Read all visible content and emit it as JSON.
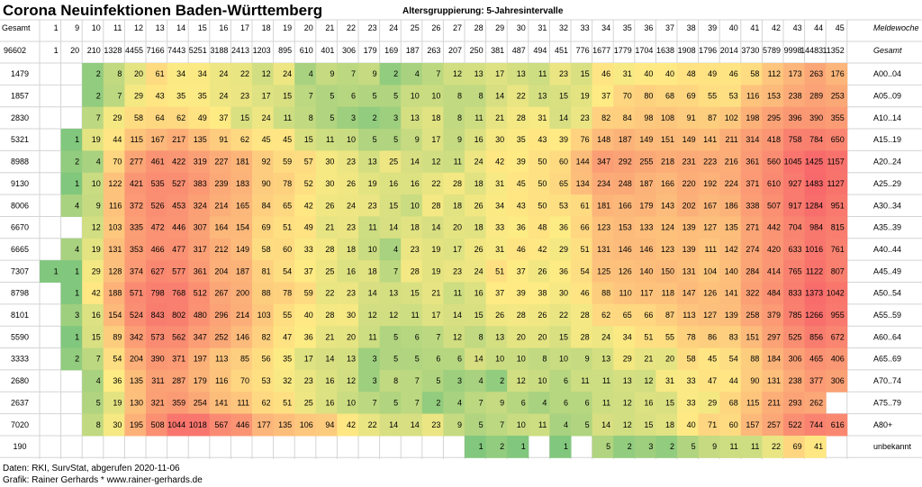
{
  "header": {
    "title": "Corona Neuinfektionen Baden-Württemberg",
    "subtitle": "Altersgruppierung: 5-Jahresintervalle"
  },
  "footer": {
    "source": "Daten: RKI, SurvStat, abgerufen 2020-11-06",
    "credit": "Grafik: Rainer Gerhards * www.rainer-gerhards.de"
  },
  "chart_data": {
    "type": "heatmap",
    "title": "Corona Neuinfektionen Baden-Württemberg",
    "subtitle": "Altersgruppierung: 5-Jahresintervalle",
    "row_header_label": "Gesamt",
    "week_axis_label": "Meldewoche",
    "total_label": "Gesamt",
    "grand_total": "96602",
    "weeks": [
      "1",
      "9",
      "10",
      "11",
      "12",
      "13",
      "14",
      "15",
      "16",
      "17",
      "18",
      "19",
      "20",
      "21",
      "22",
      "23",
      "24",
      "25",
      "26",
      "27",
      "28",
      "29",
      "30",
      "31",
      "32",
      "33",
      "34",
      "35",
      "36",
      "37",
      "38",
      "39",
      "40",
      "41",
      "42",
      "43",
      "44",
      "45"
    ],
    "week_totals": [
      "1",
      "20",
      "210",
      "1328",
      "4455",
      "7166",
      "7443",
      "5251",
      "3188",
      "2413",
      "1203",
      "895",
      "610",
      "401",
      "306",
      "179",
      "169",
      "187",
      "263",
      "207",
      "250",
      "381",
      "487",
      "494",
      "451",
      "776",
      "1677",
      "1779",
      "1704",
      "1638",
      "1908",
      "1796",
      "2014",
      "3730",
      "5789",
      "9998",
      "14483",
      "11352"
    ],
    "age_groups": [
      "A00..04",
      "A05..09",
      "A10..14",
      "A15..19",
      "A20..24",
      "A25..29",
      "A30..34",
      "A35..39",
      "A40..44",
      "A45..49",
      "A50..54",
      "A55..59",
      "A60..64",
      "A65..69",
      "A70..74",
      "A75..79",
      "A80+",
      "unbekannt"
    ],
    "row_totals": [
      "1479",
      "1857",
      "2830",
      "5321",
      "8988",
      "9130",
      "8006",
      "6670",
      "6665",
      "7307",
      "8798",
      "8101",
      "5590",
      "3333",
      "2680",
      "2637",
      "7020",
      "190"
    ],
    "values": [
      [
        "",
        "",
        "2",
        "8",
        "20",
        "61",
        "34",
        "34",
        "24",
        "22",
        "12",
        "24",
        "4",
        "9",
        "7",
        "9",
        "2",
        "4",
        "7",
        "12",
        "13",
        "17",
        "13",
        "11",
        "23",
        "15",
        "46",
        "31",
        "40",
        "40",
        "48",
        "49",
        "46",
        "58",
        "112",
        "173",
        "263",
        "176"
      ],
      [
        "",
        "",
        "2",
        "7",
        "29",
        "43",
        "35",
        "35",
        "24",
        "23",
        "17",
        "15",
        "7",
        "5",
        "6",
        "5",
        "5",
        "10",
        "10",
        "8",
        "8",
        "14",
        "22",
        "13",
        "15",
        "19",
        "37",
        "70",
        "80",
        "68",
        "69",
        "55",
        "53",
        "116",
        "153",
        "238",
        "289",
        "253"
      ],
      [
        "",
        "",
        "7",
        "29",
        "58",
        "64",
        "62",
        "49",
        "37",
        "15",
        "24",
        "11",
        "8",
        "5",
        "3",
        "2",
        "3",
        "13",
        "18",
        "8",
        "11",
        "21",
        "28",
        "31",
        "14",
        "23",
        "82",
        "84",
        "98",
        "108",
        "91",
        "87",
        "102",
        "198",
        "295",
        "396",
        "390",
        "355"
      ],
      [
        "",
        "1",
        "19",
        "44",
        "115",
        "167",
        "217",
        "135",
        "91",
        "62",
        "45",
        "45",
        "15",
        "11",
        "10",
        "5",
        "5",
        "9",
        "17",
        "9",
        "16",
        "30",
        "35",
        "43",
        "39",
        "76",
        "148",
        "187",
        "149",
        "151",
        "149",
        "141",
        "211",
        "314",
        "418",
        "758",
        "784",
        "650"
      ],
      [
        "",
        "2",
        "4",
        "70",
        "277",
        "461",
        "422",
        "319",
        "227",
        "181",
        "92",
        "59",
        "57",
        "30",
        "23",
        "13",
        "25",
        "14",
        "12",
        "11",
        "24",
        "42",
        "39",
        "50",
        "60",
        "144",
        "347",
        "292",
        "255",
        "218",
        "231",
        "223",
        "216",
        "361",
        "560",
        "1045",
        "1425",
        "1157"
      ],
      [
        "",
        "1",
        "10",
        "122",
        "421",
        "535",
        "527",
        "383",
        "239",
        "183",
        "90",
        "78",
        "52",
        "30",
        "26",
        "19",
        "16",
        "16",
        "22",
        "28",
        "18",
        "31",
        "45",
        "50",
        "65",
        "134",
        "234",
        "248",
        "187",
        "166",
        "220",
        "192",
        "224",
        "371",
        "610",
        "927",
        "1483",
        "1127"
      ],
      [
        "",
        "4",
        "9",
        "116",
        "372",
        "526",
        "453",
        "324",
        "214",
        "165",
        "84",
        "65",
        "42",
        "26",
        "24",
        "23",
        "15",
        "10",
        "28",
        "18",
        "26",
        "34",
        "43",
        "50",
        "53",
        "61",
        "181",
        "166",
        "179",
        "143",
        "202",
        "167",
        "186",
        "338",
        "507",
        "917",
        "1284",
        "951"
      ],
      [
        "",
        "",
        "12",
        "103",
        "335",
        "472",
        "446",
        "307",
        "164",
        "154",
        "69",
        "51",
        "49",
        "21",
        "23",
        "11",
        "14",
        "18",
        "14",
        "20",
        "18",
        "33",
        "36",
        "48",
        "36",
        "66",
        "123",
        "153",
        "133",
        "124",
        "139",
        "127",
        "135",
        "271",
        "442",
        "704",
        "984",
        "815"
      ],
      [
        "",
        "4",
        "19",
        "131",
        "353",
        "466",
        "477",
        "317",
        "212",
        "149",
        "58",
        "60",
        "33",
        "28",
        "18",
        "10",
        "4",
        "23",
        "19",
        "17",
        "26",
        "31",
        "46",
        "42",
        "29",
        "51",
        "131",
        "146",
        "146",
        "123",
        "139",
        "111",
        "142",
        "274",
        "420",
        "633",
        "1016",
        "761"
      ],
      [
        "1",
        "1",
        "29",
        "128",
        "374",
        "627",
        "577",
        "361",
        "204",
        "187",
        "81",
        "54",
        "37",
        "25",
        "16",
        "18",
        "7",
        "28",
        "19",
        "23",
        "24",
        "51",
        "37",
        "26",
        "36",
        "54",
        "125",
        "126",
        "140",
        "150",
        "131",
        "104",
        "140",
        "284",
        "414",
        "765",
        "1122",
        "807"
      ],
      [
        "",
        "1",
        "42",
        "188",
        "571",
        "798",
        "768",
        "512",
        "267",
        "200",
        "88",
        "78",
        "59",
        "22",
        "23",
        "14",
        "13",
        "15",
        "21",
        "11",
        "16",
        "37",
        "39",
        "38",
        "30",
        "46",
        "88",
        "110",
        "117",
        "118",
        "147",
        "126",
        "141",
        "322",
        "484",
        "833",
        "1373",
        "1042"
      ],
      [
        "",
        "3",
        "16",
        "154",
        "524",
        "843",
        "802",
        "480",
        "296",
        "214",
        "103",
        "55",
        "40",
        "28",
        "30",
        "12",
        "12",
        "11",
        "17",
        "14",
        "15",
        "26",
        "28",
        "26",
        "22",
        "28",
        "62",
        "65",
        "66",
        "87",
        "113",
        "127",
        "139",
        "258",
        "379",
        "785",
        "1266",
        "955"
      ],
      [
        "",
        "1",
        "15",
        "89",
        "342",
        "573",
        "562",
        "347",
        "252",
        "146",
        "82",
        "47",
        "36",
        "21",
        "20",
        "11",
        "5",
        "6",
        "7",
        "12",
        "8",
        "13",
        "20",
        "20",
        "15",
        "28",
        "24",
        "34",
        "51",
        "55",
        "78",
        "86",
        "83",
        "151",
        "297",
        "525",
        "856",
        "672"
      ],
      [
        "",
        "2",
        "7",
        "54",
        "204",
        "390",
        "371",
        "197",
        "113",
        "85",
        "56",
        "35",
        "17",
        "14",
        "13",
        "3",
        "5",
        "5",
        "6",
        "6",
        "14",
        "10",
        "10",
        "8",
        "10",
        "9",
        "13",
        "29",
        "21",
        "20",
        "58",
        "45",
        "54",
        "88",
        "184",
        "306",
        "465",
        "406"
      ],
      [
        "",
        "",
        "4",
        "36",
        "135",
        "311",
        "287",
        "179",
        "116",
        "70",
        "53",
        "32",
        "23",
        "16",
        "12",
        "3",
        "8",
        "7",
        "5",
        "3",
        "4",
        "2",
        "12",
        "10",
        "6",
        "11",
        "11",
        "13",
        "12",
        "31",
        "33",
        "47",
        "44",
        "90",
        "131",
        "238",
        "377",
        "306"
      ],
      [
        "",
        "",
        "5",
        "19",
        "130",
        "321",
        "359",
        "254",
        "141",
        "111",
        "62",
        "51",
        "25",
        "16",
        "10",
        "7",
        "5",
        "7",
        "2",
        "4",
        "7",
        "9",
        "6",
        "4",
        "6",
        "6",
        "11",
        "12",
        "16",
        "15",
        "33",
        "29",
        "68",
        "115",
        "211",
        "293",
        "262",
        ""
      ],
      [
        "",
        "",
        "8",
        "30",
        "195",
        "508",
        "1044",
        "1018",
        "567",
        "446",
        "177",
        "135",
        "106",
        "94",
        "42",
        "22",
        "14",
        "14",
        "23",
        "9",
        "5",
        "7",
        "10",
        "11",
        "4",
        "5",
        "14",
        "12",
        "15",
        "18",
        "40",
        "71",
        "60",
        "157",
        "257",
        "522",
        "744",
        "616"
      ],
      [
        "",
        "",
        "",
        "",
        "",
        "",
        "",
        "",
        "",
        "",
        "",
        "",
        "",
        "",
        "",
        "",
        "",
        "",
        "",
        "",
        "1",
        "2",
        "1",
        "",
        "1",
        "",
        "5",
        "2",
        "3",
        "2",
        "5",
        "9",
        "11",
        "11",
        "22",
        "69",
        "41",
        ""
      ]
    ],
    "color_scale": {
      "low": "#63be7b",
      "mid": "#ffeb84",
      "high": "#f8696b"
    }
  }
}
